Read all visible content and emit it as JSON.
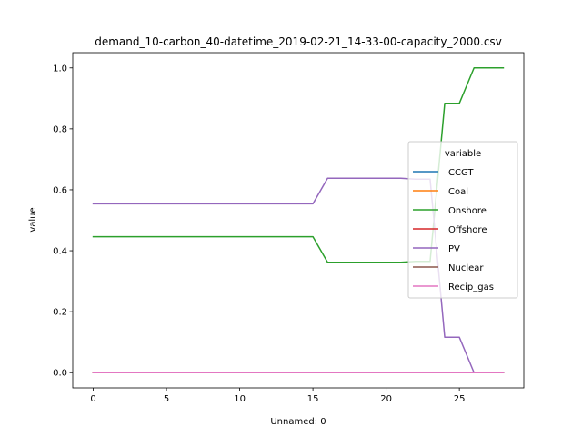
{
  "chart_data": {
    "type": "line",
    "title": "demand_10-carbon_40-datetime_2019-02-21_14-33-00-capacity_2000.csv",
    "xlabel": "Unnamed: 0",
    "ylabel": "value",
    "xlim": [
      -1.4,
      29.4
    ],
    "ylim": [
      -0.05,
      1.05
    ],
    "xticks": [
      0,
      5,
      10,
      15,
      20,
      25
    ],
    "yticks": [
      0.0,
      0.2,
      0.4,
      0.6,
      0.8,
      1.0
    ],
    "ytick_labels": [
      "0.0",
      "0.2",
      "0.4",
      "0.6",
      "0.8",
      "1.0"
    ],
    "grid": false,
    "legend": {
      "title": "variable",
      "placement": "center-right"
    },
    "x": [
      0,
      1,
      2,
      3,
      4,
      5,
      6,
      7,
      8,
      9,
      10,
      11,
      12,
      13,
      14,
      15,
      16,
      17,
      18,
      19,
      20,
      21,
      22,
      23,
      24,
      25,
      26,
      27,
      28
    ],
    "series": [
      {
        "name": "CCGT",
        "color": "#1f77b4",
        "values": [
          0,
          0,
          0,
          0,
          0,
          0,
          0,
          0,
          0,
          0,
          0,
          0,
          0,
          0,
          0,
          0,
          0,
          0,
          0,
          0,
          0,
          0,
          0,
          0,
          0,
          0,
          0,
          0,
          0
        ]
      },
      {
        "name": "Coal",
        "color": "#ff7f0e",
        "values": [
          0,
          0,
          0,
          0,
          0,
          0,
          0,
          0,
          0,
          0,
          0,
          0,
          0,
          0,
          0,
          0,
          0,
          0,
          0,
          0,
          0,
          0,
          0,
          0,
          0,
          0,
          0,
          0,
          0
        ]
      },
      {
        "name": "Onshore",
        "color": "#2ca02c",
        "values": [
          0.446,
          0.446,
          0.446,
          0.446,
          0.446,
          0.446,
          0.446,
          0.446,
          0.446,
          0.446,
          0.446,
          0.446,
          0.446,
          0.446,
          0.446,
          0.446,
          0.362,
          0.362,
          0.362,
          0.362,
          0.362,
          0.362,
          0.365,
          0.365,
          0.884,
          0.884,
          1.0,
          1.0,
          1.0
        ]
      },
      {
        "name": "Offshore",
        "color": "#d62728",
        "values": [
          0,
          0,
          0,
          0,
          0,
          0,
          0,
          0,
          0,
          0,
          0,
          0,
          0,
          0,
          0,
          0,
          0,
          0,
          0,
          0,
          0,
          0,
          0,
          0,
          0,
          0,
          0,
          0,
          0
        ]
      },
      {
        "name": "PV",
        "color": "#9467bd",
        "values": [
          0.554,
          0.554,
          0.554,
          0.554,
          0.554,
          0.554,
          0.554,
          0.554,
          0.554,
          0.554,
          0.554,
          0.554,
          0.554,
          0.554,
          0.554,
          0.554,
          0.638,
          0.638,
          0.638,
          0.638,
          0.638,
          0.638,
          0.635,
          0.635,
          0.116,
          0.116,
          0,
          0,
          0
        ]
      },
      {
        "name": "Nuclear",
        "color": "#8c564b",
        "values": [
          0,
          0,
          0,
          0,
          0,
          0,
          0,
          0,
          0,
          0,
          0,
          0,
          0,
          0,
          0,
          0,
          0,
          0,
          0,
          0,
          0,
          0,
          0,
          0,
          0,
          0,
          0,
          0,
          0
        ]
      },
      {
        "name": "Recip_gas",
        "color": "#e377c2",
        "values": [
          0,
          0,
          0,
          0,
          0,
          0,
          0,
          0,
          0,
          0,
          0,
          0,
          0,
          0,
          0,
          0,
          0,
          0,
          0,
          0,
          0,
          0,
          0,
          0,
          0,
          0,
          0,
          0,
          0
        ]
      }
    ]
  }
}
